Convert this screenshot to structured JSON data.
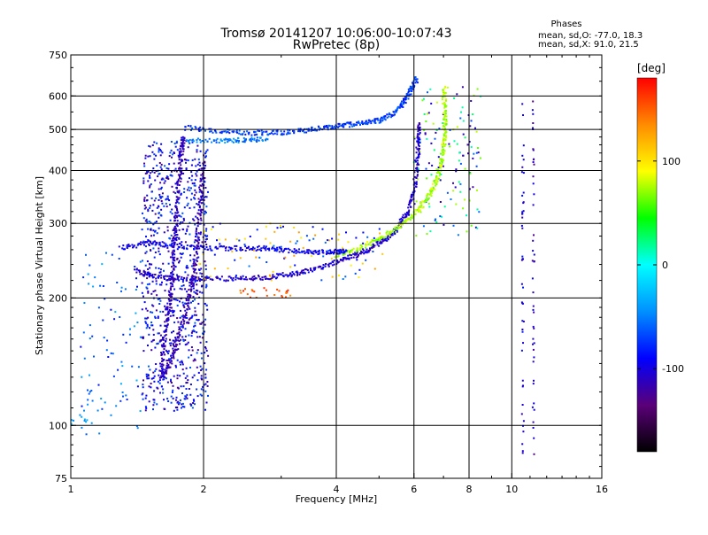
{
  "chart_data": {
    "type": "scatter",
    "title": "Tromsø 20141207 10:06:00-10:07:43",
    "subtitle": "RwPretec (8p)",
    "xlabel": "Frequency [MHz]",
    "ylabel": "Stationary phase Virtual Height [km]",
    "x_scale": "log",
    "y_scale": "log",
    "xlim": [
      1,
      16
    ],
    "ylim": [
      75,
      750
    ],
    "x_ticks": [
      1,
      2,
      4,
      6,
      8,
      10,
      16
    ],
    "y_ticks": [
      75,
      100,
      200,
      300,
      400,
      500,
      600,
      750
    ],
    "grid": true,
    "phase_box": {
      "heading": "Phases",
      "line_o": "mean, sd,O: -77.0, 18.3",
      "line_x": "mean, sd,X:  91.0, 21.5"
    },
    "colorbar": {
      "label": "[deg]",
      "ticks": [
        "100",
        "0",
        "-100"
      ],
      "tick_values": [
        100,
        0,
        -100
      ],
      "range": [
        -180,
        180
      ],
      "colors": [
        "#000000",
        "#5a0078",
        "#0000ff",
        "#0090ff",
        "#00ffff",
        "#00ff00",
        "#ffff00",
        "#ff8c00",
        "#ff0000"
      ]
    },
    "traces": [
      {
        "phase": -105,
        "points": [
          [
            1.4,
            232
          ],
          [
            1.55,
            225
          ],
          [
            1.75,
            222
          ],
          [
            2,
            222
          ],
          [
            2.4,
            222
          ],
          [
            2.8,
            224
          ],
          [
            3.2,
            228
          ],
          [
            3.6,
            234
          ],
          [
            4,
            243
          ],
          [
            4.4,
            252
          ],
          [
            4.8,
            262
          ],
          [
            5.2,
            276
          ],
          [
            5.5,
            292
          ],
          [
            5.8,
            318
          ],
          [
            6.0,
            355
          ],
          [
            6.1,
            410
          ],
          [
            6.15,
            470
          ],
          [
            6.2,
            520
          ]
        ]
      },
      {
        "phase": 75,
        "points": [
          [
            4.0,
            252
          ],
          [
            4.5,
            262
          ],
          [
            5.0,
            275
          ],
          [
            5.5,
            293
          ],
          [
            6.0,
            315
          ],
          [
            6.4,
            340
          ],
          [
            6.7,
            372
          ],
          [
            6.9,
            410
          ],
          [
            7.0,
            450
          ],
          [
            7.05,
            500
          ],
          [
            7.05,
            560
          ],
          [
            7.0,
            630
          ]
        ]
      },
      {
        "phase": -95,
        "points": [
          [
            1.3,
            262
          ],
          [
            1.5,
            270
          ],
          [
            1.7,
            266
          ],
          [
            2,
            262
          ],
          [
            2.4,
            262
          ],
          [
            2.8,
            262
          ],
          [
            3.2,
            258
          ],
          [
            3.6,
            256
          ],
          [
            4.0,
            257
          ],
          [
            4.2,
            258
          ]
        ]
      },
      {
        "phase": -70,
        "points": [
          [
            1.8,
            505
          ],
          [
            2.2,
            495
          ],
          [
            2.6,
            490
          ],
          [
            3.0,
            492
          ],
          [
            3.4,
            498
          ],
          [
            3.8,
            505
          ],
          [
            4.2,
            512
          ],
          [
            4.6,
            518
          ],
          [
            5.0,
            525
          ],
          [
            5.4,
            545
          ],
          [
            5.7,
            580
          ],
          [
            5.9,
            620
          ],
          [
            6.1,
            660
          ]
        ]
      },
      {
        "phase": -50,
        "points": [
          [
            1.8,
            470
          ],
          [
            2.2,
            470
          ],
          [
            2.5,
            472
          ],
          [
            2.8,
            474
          ]
        ]
      },
      {
        "phase": -110,
        "points": [
          [
            1.6,
            128
          ],
          [
            1.62,
            150
          ],
          [
            1.65,
            175
          ],
          [
            1.68,
            200
          ],
          [
            1.7,
            235
          ],
          [
            1.72,
            275
          ],
          [
            1.74,
            320
          ],
          [
            1.76,
            380
          ],
          [
            1.78,
            440
          ],
          [
            1.8,
            480
          ]
        ]
      },
      {
        "phase": -115,
        "points": [
          [
            1.62,
            130
          ],
          [
            1.68,
            140
          ],
          [
            1.75,
            160
          ],
          [
            1.82,
            185
          ],
          [
            1.88,
            215
          ],
          [
            1.92,
            250
          ],
          [
            1.95,
            300
          ],
          [
            1.98,
            360
          ],
          [
            2.0,
            420
          ]
        ]
      }
    ],
    "vertical_streaks": [
      {
        "x": 11.2,
        "y_range": [
          85,
          620
        ],
        "phase": -110
      },
      {
        "x": 10.6,
        "y_range": [
          83,
          620
        ],
        "phase": -100
      }
    ],
    "point_clusters": [
      {
        "label": "",
        "x_range": [
          1.45,
          2.05
        ],
        "y_range": [
          108,
          470
        ],
        "phases": [
          -120,
          -100,
          -85,
          -70
        ],
        "count": 900
      },
      {
        "label": "",
        "x_range": [
          1.05,
          1.45
        ],
        "y_range": [
          95,
          260
        ],
        "phases": [
          -60,
          -40,
          -80
        ],
        "count": 90
      },
      {
        "label": "",
        "x_range": [
          6.0,
          8.5
        ],
        "y_range": [
          280,
          630
        ],
        "phases": [
          -110,
          70,
          -60,
          20
        ],
        "count": 140
      },
      {
        "label": "",
        "x_range": [
          1.9,
          5.2
        ],
        "y_range": [
          220,
          300
        ],
        "phases": [
          -90,
          -60,
          120,
          100
        ],
        "count": 120
      },
      {
        "label": "",
        "x_range": [
          2.4,
          3.2
        ],
        "y_range": [
          200,
          212
        ],
        "phases": [
          160,
          140
        ],
        "count": 25
      },
      {
        "label": "",
        "x_range": [
          1.0,
          1.1
        ],
        "y_range": [
          100,
          106
        ],
        "phases": [
          -40
        ],
        "count": 10
      }
    ]
  }
}
